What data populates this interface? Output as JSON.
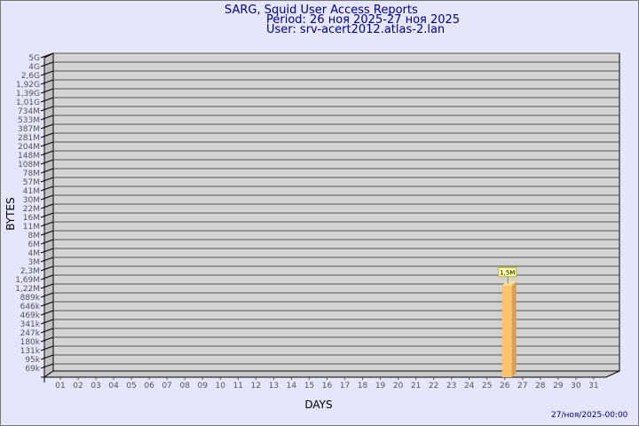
{
  "title": "SARG, Squid User Access Reports",
  "period": "Period: 26 ноя 2025-27 ноя 2025",
  "user": "User: srv-acert2012.atlas-2.lan",
  "footer_timestamp": "27/ноя/2025-00:00",
  "colors": {
    "background": "#e6e6fa",
    "plot": "#d3d3d3",
    "bar": "#fcc46c",
    "bar_side": "#dca04c",
    "title": "#00008b"
  },
  "chart_data": {
    "type": "bar",
    "xlabel": "DAYS",
    "ylabel": "BYTES",
    "y_scale": "log",
    "y_tick_labels": [
      "5G",
      "4G",
      "2,6G",
      "1,92G",
      "1,39G",
      "1,01G",
      "734M",
      "533M",
      "387M",
      "281M",
      "204M",
      "148M",
      "108M",
      "78M",
      "57M",
      "41M",
      "30M",
      "22M",
      "16M",
      "11M",
      "8M",
      "6M",
      "4M",
      "3M",
      "2,3M",
      "1,69M",
      "1,22M",
      "889k",
      "646k",
      "469k",
      "341k",
      "247k",
      "180k",
      "131k",
      "95k",
      "69k"
    ],
    "categories": [
      "01",
      "02",
      "03",
      "04",
      "05",
      "06",
      "07",
      "08",
      "09",
      "10",
      "11",
      "12",
      "13",
      "14",
      "15",
      "16",
      "17",
      "18",
      "19",
      "20",
      "21",
      "22",
      "23",
      "24",
      "25",
      "26",
      "27",
      "28",
      "29",
      "30",
      "31"
    ],
    "bars": [
      {
        "category": "26",
        "value": "1,5M"
      }
    ],
    "grid": true,
    "style": "3d"
  }
}
